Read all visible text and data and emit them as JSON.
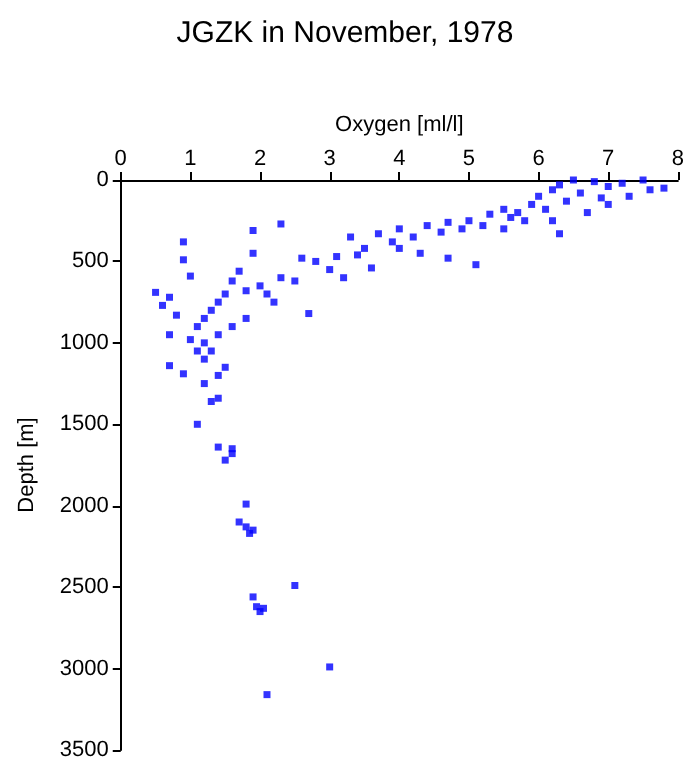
{
  "chart_data": {
    "type": "scatter",
    "title": "JGZK in November, 1978",
    "xlabel": "Oxygen [ml/l]",
    "ylabel": "Depth [m]",
    "xlim": [
      0,
      8
    ],
    "xticks": [
      0,
      1,
      2,
      3,
      4,
      5,
      6,
      7,
      8
    ],
    "ylim": [
      3500,
      0
    ],
    "yticks": [
      0,
      500,
      1000,
      1500,
      2000,
      2500,
      3000,
      3500
    ],
    "grid": false,
    "marker": "square",
    "series": [
      {
        "color": "#0000ff",
        "x": [
          7.8,
          7.5,
          7.2,
          7.0,
          6.8,
          6.5,
          6.3,
          6.2,
          6.6,
          7.3,
          7.6,
          6.9,
          6.0,
          6.4,
          5.9,
          6.1,
          5.7,
          5.5,
          5.8,
          5.3,
          5.6,
          5.0,
          5.2,
          4.9,
          4.7,
          4.6,
          4.4,
          4.2,
          4.0,
          3.9,
          3.7,
          3.5,
          3.3,
          3.4,
          3.1,
          3.0,
          2.8,
          2.6,
          2.7,
          2.5,
          2.3,
          2.3,
          2.1,
          2.0,
          1.8,
          1.9,
          1.9,
          1.7,
          1.5,
          1.6,
          1.4,
          1.3,
          1.2,
          1.1,
          1.0,
          0.5,
          0.6,
          0.7,
          0.7,
          0.9,
          0.9,
          1.0,
          0.8,
          1.1,
          1.2,
          0.9,
          0.7,
          1.2,
          1.3,
          1.4,
          1.5,
          1.1,
          1.4,
          1.5,
          1.6,
          1.6,
          1.8,
          1.7,
          1.8,
          1.85,
          1.9,
          1.9,
          1.95,
          2.0,
          2.05,
          2.5,
          3.0,
          2.1,
          4.7,
          4.3,
          4.0,
          3.6,
          3.2,
          5.1,
          5.5,
          6.2,
          6.7,
          7.0,
          6.3,
          1.6,
          1.4,
          1.2,
          1.3,
          1.4,
          1.8,
          2.2
        ],
        "values": [
          50,
          0,
          20,
          40,
          10,
          0,
          30,
          60,
          80,
          100,
          60,
          110,
          100,
          130,
          150,
          180,
          200,
          180,
          250,
          210,
          230,
          250,
          280,
          300,
          260,
          320,
          280,
          350,
          300,
          380,
          330,
          420,
          350,
          460,
          470,
          550,
          500,
          480,
          820,
          620,
          600,
          270,
          700,
          650,
          680,
          310,
          450,
          560,
          700,
          620,
          750,
          800,
          850,
          900,
          980,
          690,
          770,
          720,
          950,
          380,
          490,
          590,
          830,
          1050,
          1100,
          1190,
          1140,
          1250,
          1360,
          1340,
          1150,
          1500,
          1640,
          1720,
          1680,
          1650,
          1990,
          2100,
          2130,
          2170,
          2150,
          2560,
          2620,
          2650,
          2630,
          2490,
          2990,
          3160,
          480,
          450,
          420,
          540,
          600,
          520,
          300,
          250,
          200,
          150,
          330,
          900,
          950,
          1000,
          1050,
          1200,
          850,
          750
        ]
      }
    ]
  }
}
